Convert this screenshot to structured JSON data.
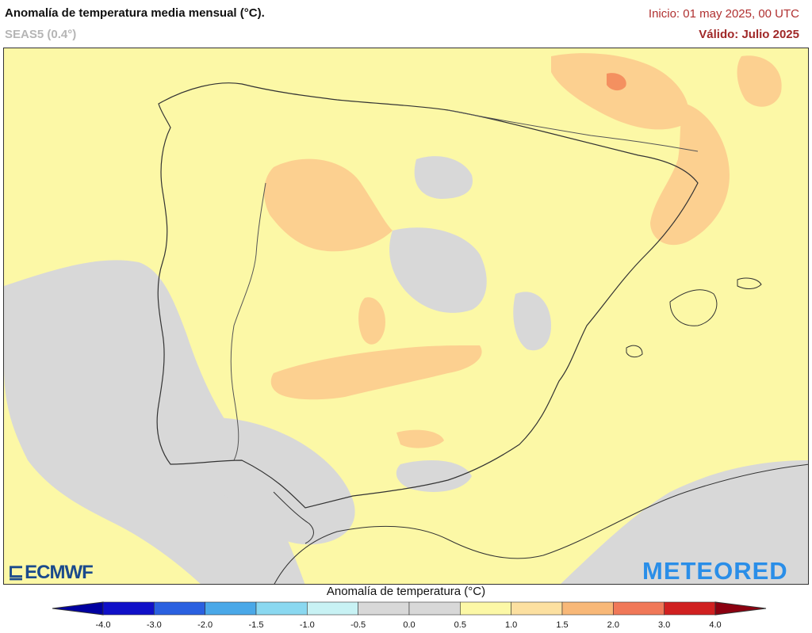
{
  "header": {
    "title": "Anomalía de temperatura media mensual (°C).",
    "subtitle": "SEAS5 (0.4°)",
    "init": "Inicio: 01 may 2025, 00 UTC",
    "valid": "Válido: Julio 2025"
  },
  "legend": {
    "title": "Anomalía de temperatura (°C)",
    "ticks": [
      "-4.0",
      "-3.0",
      "-2.0",
      "-1.5",
      "-1.0",
      "-0.5",
      "0.0",
      "0.5",
      "1.0",
      "1.5",
      "2.0",
      "3.0",
      "4.0"
    ],
    "colors": [
      "#1010c8",
      "#2a60e0",
      "#4aa8e8",
      "#8ad8f0",
      "#c8f2f4",
      "#d8d8d8",
      "#d8d8d8",
      "#fcf8a6",
      "#fce0a0",
      "#f8b878",
      "#f07858",
      "#d02020"
    ],
    "under_color": "#0000a0",
    "over_color": "#8b0010"
  },
  "map": {
    "land_color": "#fcf8a6",
    "sea_color": "#fcf8a6",
    "neutral_color": "#d8d8d8",
    "warm_color": "#fcd090",
    "hot_color": "#f49060",
    "border_color": "#555555"
  },
  "logos": {
    "left": "ECMWF",
    "right": "METEORED"
  }
}
